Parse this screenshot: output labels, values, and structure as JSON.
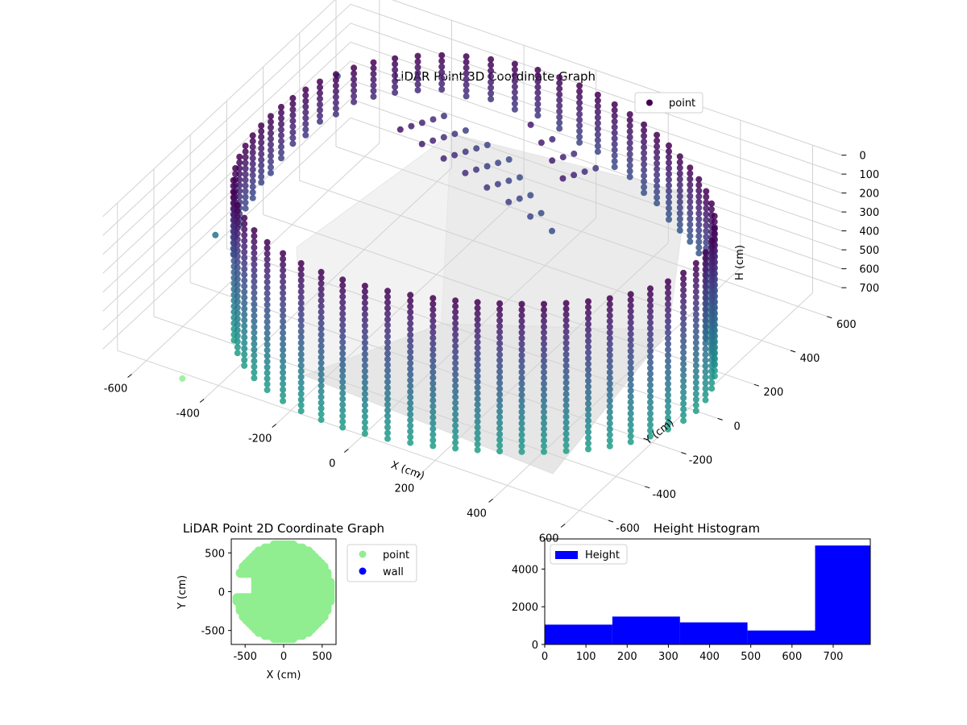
{
  "chart_data": [
    {
      "type": "scatter3d",
      "title": "LiDAR Point 3D Coordinate Graph",
      "xlabel": "X (cm)",
      "ylabel": "Y (cm)",
      "zlabel": "H (cm)",
      "x_ticks": [
        -600,
        -400,
        -200,
        0,
        200,
        400,
        600
      ],
      "y_ticks": [
        -600,
        -400,
        -200,
        0,
        200,
        400,
        600
      ],
      "z_ticks": [
        0,
        100,
        200,
        300,
        400,
        500,
        600,
        700
      ],
      "xlim": [
        -680,
        680
      ],
      "ylim": [
        -680,
        680
      ],
      "zlim": [
        0,
        780
      ],
      "z_inverted": true,
      "legend": [
        "point"
      ],
      "legend_position": "top-right",
      "colormap": "viridis",
      "description_points": {
        "wall_radius": 620,
        "wall_height_range": [
          0,
          780
        ],
        "outliers": [
          {
            "x": -600,
            "y": 450,
            "h": 220
          },
          {
            "x": -560,
            "y": -300,
            "h": 360
          },
          {
            "x": -480,
            "y": -640,
            "h": 760
          }
        ]
      }
    },
    {
      "type": "scatter",
      "title": "LiDAR Point 2D Coordinate Graph",
      "xlabel": "X (cm)",
      "ylabel": "Y (cm)",
      "x_ticks": [
        -500,
        0,
        500
      ],
      "y_ticks": [
        500,
        0,
        -500
      ],
      "xlim": [
        -680,
        680
      ],
      "ylim": [
        -680,
        680
      ],
      "legend": [
        "point",
        "wall"
      ],
      "legend_position": "outside-right",
      "series": [
        {
          "name": "point",
          "color": "#90ee90",
          "shape": "disc-with-gap",
          "radius": 620,
          "gap": {
            "x_from": -680,
            "x_to": -400,
            "y_from": -40,
            "y_to": 220
          }
        },
        {
          "name": "wall",
          "color": "#0000ff",
          "values": []
        }
      ]
    },
    {
      "type": "histogram",
      "title": "Height Histogram",
      "xlabel": "",
      "ylabel": "",
      "x_ticks": [
        0,
        100,
        200,
        300,
        400,
        500,
        600,
        700
      ],
      "y_ticks": [
        0,
        2000,
        4000
      ],
      "xlim": [
        0,
        790
      ],
      "ylim": [
        0,
        5600
      ],
      "legend": [
        "Height"
      ],
      "legend_position": "top-left",
      "color": "#0000ff",
      "bins": [
        {
          "from": 0,
          "to": 164,
          "count": 1050
        },
        {
          "from": 164,
          "to": 328,
          "count": 1480
        },
        {
          "from": 328,
          "to": 492,
          "count": 1170
        },
        {
          "from": 492,
          "to": 656,
          "count": 740
        },
        {
          "from": 656,
          "to": 790,
          "count": 5250
        }
      ]
    }
  ]
}
